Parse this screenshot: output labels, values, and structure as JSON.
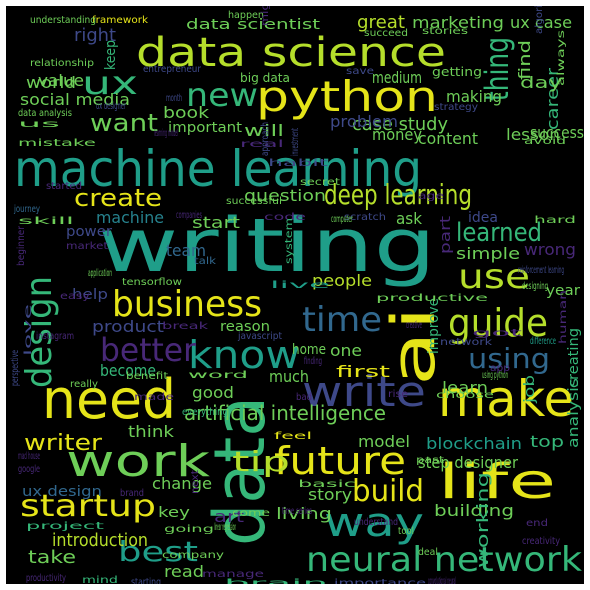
{
  "palette": {
    "background": "#000000",
    "yellow": "#e5e419",
    "lime": "#b5de2b",
    "green": "#6ece58",
    "teal": "#35b779",
    "seafoam": "#1f9e89",
    "cyan": "#26828e",
    "steel": "#31688e",
    "indigo": "#3e4989",
    "purple": "#482878",
    "violet": "#440154"
  },
  "words": [
    "writing",
    "machine learning",
    "data science",
    "need",
    "data",
    "make",
    "python",
    "ai",
    "life",
    "work",
    "neural network",
    "business",
    "know",
    "future",
    "way",
    "write",
    "time",
    "design",
    "ux",
    "guide",
    "use",
    "new",
    "deep learning",
    "startup",
    "build",
    "better",
    "best",
    "tip",
    "thing",
    "create",
    "learned",
    "using",
    "want",
    "artificial intelligence",
    "writer",
    "social media",
    "world",
    "introduction",
    "success",
    "case study",
    "step designer",
    "blockchain",
    "data scientist",
    "marketing",
    "ux case",
    "great",
    "right",
    "keep",
    "medium",
    "value",
    "career",
    "problem",
    "content",
    "money",
    "lesson",
    "day",
    "making",
    "find",
    "book",
    "important",
    "will",
    "question",
    "start",
    "machine",
    "team",
    "power",
    "help",
    "product",
    "reason",
    "people",
    "home",
    "one",
    "first",
    "much",
    "become",
    "good",
    "think",
    "model",
    "learn",
    "top",
    "job",
    "analysis",
    "creating",
    "improve",
    "simple",
    "wrong",
    "year",
    "idea",
    "part",
    "ask",
    "change",
    "key",
    "story",
    "art",
    "living",
    "read",
    "take",
    "ux design",
    "building",
    "working",
    "big data",
    "getting",
    "save",
    "stories",
    "succeed",
    "happen",
    "framework",
    "understanding",
    "relationship",
    "might",
    "algorithm",
    "always",
    "entrepreneur",
    "data analysis",
    "ux designer",
    "month",
    "us",
    "strategy",
    "mistake",
    "learning model",
    "real",
    "approach",
    "habit",
    "investment",
    "avoid",
    "started",
    "secret",
    "journey",
    "skill",
    "successful",
    "companies",
    "code",
    "scratch",
    "computer",
    "age",
    "hard",
    "beginner",
    "market",
    "system",
    "tensorflow",
    "application",
    "talk",
    "live",
    "productive",
    "reinforcement learning",
    "designing",
    "easy",
    "break",
    "creative",
    "got",
    "difference",
    "love",
    "javascript",
    "network",
    "instagram",
    "human",
    "perspective",
    "really",
    "benefit",
    "word",
    "finding",
    "using python",
    "bad",
    "made",
    "app",
    "choose",
    "rise",
    "everything",
    "feel",
    "mad house",
    "google",
    "past",
    "next",
    "brand",
    "basic",
    "come",
    "time series",
    "project",
    "going",
    "linear regression",
    "understand",
    "tool",
    "creativity",
    "end",
    "company",
    "deal",
    "productivity",
    "mind",
    "starting",
    "manage",
    "brain",
    "importance",
    "convolutional neural",
    "data visualization",
    "teach"
  ]
}
